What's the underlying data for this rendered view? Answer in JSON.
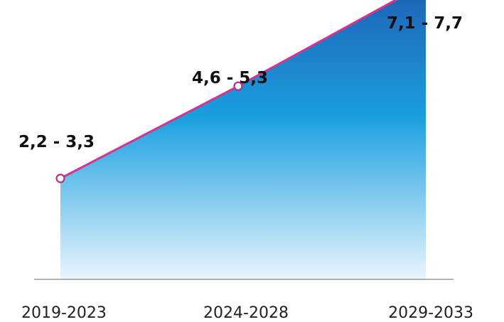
{
  "chart_data": {
    "type": "area",
    "categories": [
      "2019-2023",
      "2024-2028",
      "2029-2033"
    ],
    "series": [
      {
        "ranges": [
          [
            2.2,
            3.3
          ],
          [
            4.6,
            5.3
          ],
          [
            7.1,
            7.7
          ]
        ],
        "labels": [
          "2,2 - 3,3",
          "4,6 - 5,3",
          "7,1 - 7,7"
        ]
      }
    ],
    "grid": false,
    "colors": {
      "area_top": "#1f5fb4",
      "area_mid": "#1a9fe0",
      "area_bottom": "#eaf6fd",
      "line": "#d6338a",
      "marker_stroke": "#b5307e",
      "baseline": "#888888"
    }
  }
}
